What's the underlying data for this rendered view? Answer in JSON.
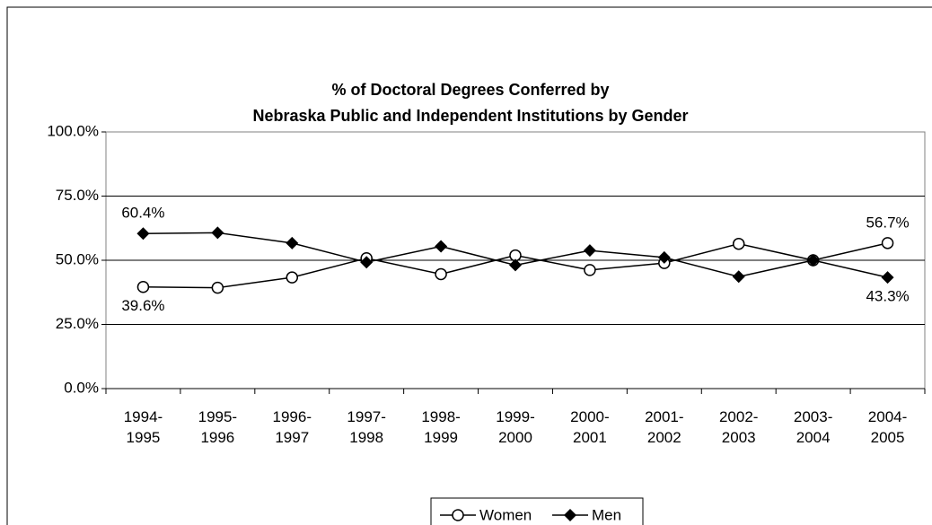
{
  "chart_data": {
    "type": "line",
    "title": [
      "% of Doctoral Degrees Conferred by",
      "Nebraska Public and Independent Institutions by Gender"
    ],
    "categories": [
      "1994-1995",
      "1995-1996",
      "1996-1997",
      "1997-1998",
      "1998-1999",
      "1999-2000",
      "2000-2001",
      "2001-2002",
      "2002-2003",
      "2003-2004",
      "2004-2005"
    ],
    "series": [
      {
        "name": "Women",
        "color": "#000000",
        "marker": "circle",
        "values": [
          39.6,
          39.3,
          43.3,
          50.8,
          44.6,
          51.9,
          46.2,
          48.9,
          56.4,
          50.0,
          56.7
        ],
        "value_labels": [
          "39.6%",
          null,
          null,
          null,
          null,
          null,
          null,
          null,
          null,
          null,
          "56.7%"
        ]
      },
      {
        "name": "Men",
        "color": "#000000",
        "marker": "diamond",
        "values": [
          60.4,
          60.7,
          56.7,
          49.2,
          55.4,
          48.1,
          53.8,
          51.1,
          43.6,
          50.0,
          43.3
        ],
        "value_labels": [
          "60.4%",
          null,
          null,
          null,
          null,
          null,
          null,
          null,
          null,
          null,
          "43.3%"
        ]
      }
    ],
    "ylim": [
      0,
      100
    ],
    "yticks": [
      {
        "value": 0,
        "label": "0.0%"
      },
      {
        "value": 25,
        "label": "25.0%"
      },
      {
        "value": 50,
        "label": "50.0%"
      },
      {
        "value": 75,
        "label": "75.0%"
      },
      {
        "value": 100,
        "label": "100.0%"
      }
    ],
    "grid": true,
    "legend": "bottom"
  }
}
